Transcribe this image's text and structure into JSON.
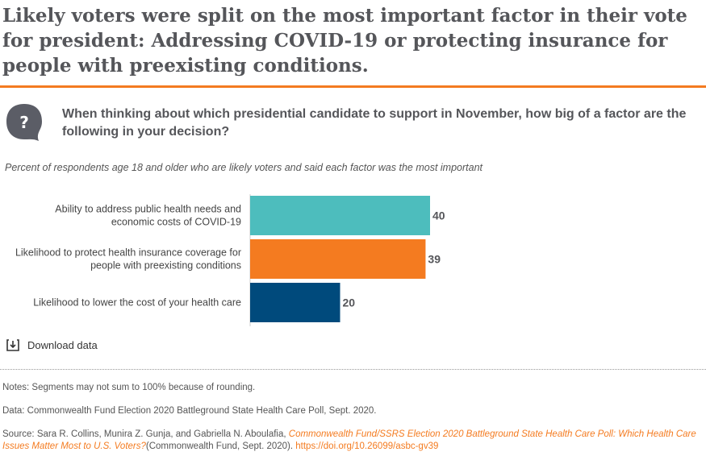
{
  "title": "Likely voters were split on the most important factor in their vote for president: Addressing COVID-19 or protecting insurance for people with preexisting conditions.",
  "question": "When thinking about which presidential candidate to support in November, how big of a factor are the following in your decision?",
  "icon": "question-speech-bubble-icon",
  "subtitle": "Percent of respondents age 18 and older who are likely voters and said each factor was the most important",
  "chart_data": {
    "type": "bar",
    "orientation": "horizontal",
    "categories": [
      [
        "Ability to address public health needs and",
        "economic costs of COVID-19"
      ],
      [
        "Likelihood to protect health insurance coverage for",
        "people with preexisting conditions"
      ],
      [
        "Likelihood to lower the cost of your health care"
      ]
    ],
    "values": [
      40,
      39,
      20
    ],
    "colors": [
      "#4dbdbd",
      "#f47b20",
      "#004a7c"
    ],
    "xlim": [
      0,
      50
    ],
    "grid": false
  },
  "download_label": "Download data",
  "notes": "Notes: Segments may not sum to 100% because of rounding.",
  "data_line": "Data: Commonwealth Fund Election 2020 Battleground State Health Care Poll, Sept. 2020.",
  "source": {
    "prefix": "Source: Sara R. Collins, Munira Z. Gunja, and Gabriella N. Aboulafia, ",
    "link_title": "Commonwealth Fund/SSRS Election 2020 Battleground State Health Care Poll: Which Health Care Issues Matter Most to U.S. Voters?",
    "middle": "(Commonwealth Fund, Sept. 2020). ",
    "doi": "https://doi.org/10.26099/asbc-gv39"
  }
}
